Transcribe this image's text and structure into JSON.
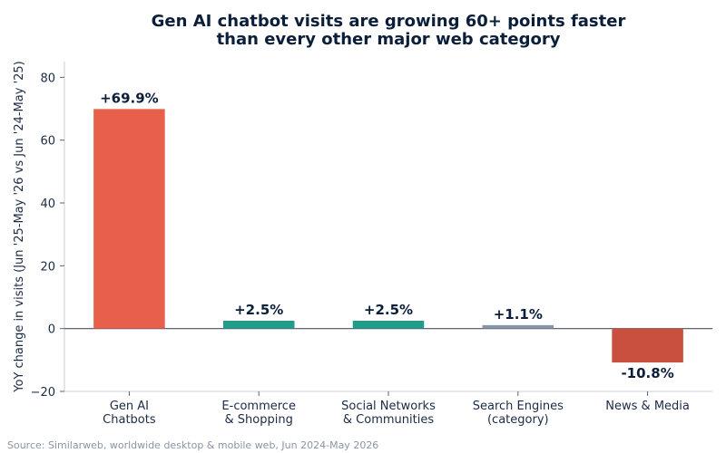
{
  "chart_data": {
    "type": "bar",
    "title_lines": [
      "Gen AI chatbot visits are growing 60+ points faster",
      "than every other major web category"
    ],
    "categories": [
      [
        "Gen AI",
        "Chatbots"
      ],
      [
        "E-commerce",
        "& Shopping"
      ],
      [
        "Social Networks",
        "& Communities"
      ],
      [
        "Search Engines",
        "(category)"
      ],
      [
        "News & Media"
      ]
    ],
    "values": [
      69.9,
      2.5,
      2.5,
      1.1,
      -10.8
    ],
    "data_labels": [
      "+69.9%",
      "+2.5%",
      "+2.5%",
      "+1.1%",
      "-10.8%"
    ],
    "colors": [
      "#e8604c",
      "#239b8a",
      "#239b8a",
      "#8795a8",
      "#c9503f"
    ],
    "ylabel": "YoY change in visits (Jun '25-May '26 vs Jun '24-May '25)",
    "ylim": [
      -20,
      85
    ],
    "yticks": [
      -20,
      0,
      20,
      40,
      60,
      80
    ],
    "ytick_labels": [
      "−20",
      "0",
      "20",
      "40",
      "60",
      "80"
    ],
    "grid": false,
    "source": "Source: Similarweb, worldwide desktop & mobile web, Jun 2024-May 2026"
  }
}
